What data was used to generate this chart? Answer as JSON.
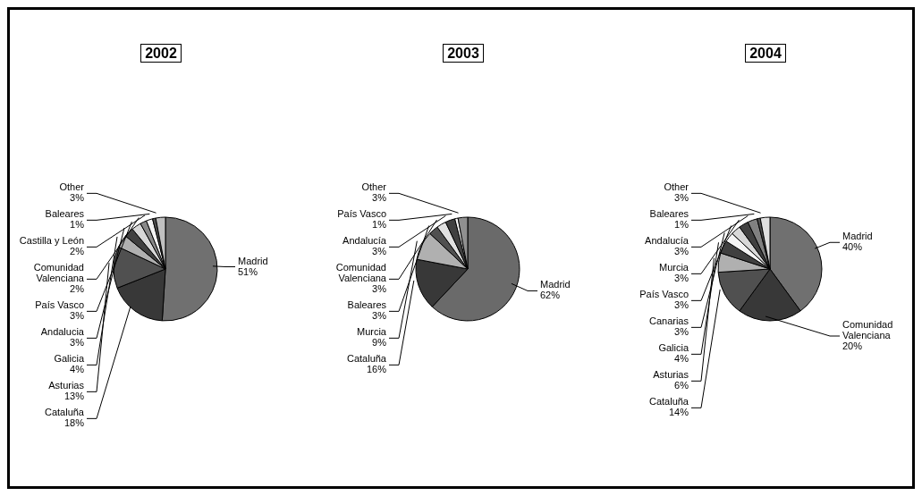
{
  "chart_data": [
    {
      "type": "pie",
      "title": "2002",
      "categories": [
        "Madrid",
        "Cataluña",
        "Asturias",
        "Galicia",
        "Andalucia",
        "País Vasco",
        "Comunidad Valenciana",
        "Castilla y León",
        "Baleares",
        "Other"
      ],
      "values": [
        51,
        18,
        13,
        4,
        3,
        3,
        2,
        2,
        1,
        3
      ],
      "value_labels": [
        "51%",
        "18%",
        "13%",
        "4%",
        "3%",
        "3%",
        "2%",
        "2%",
        "1%",
        "3%"
      ],
      "colors": [
        "#707070",
        "#383838",
        "#505050",
        "#b0b0b0",
        "#404040",
        "#d8d8d8",
        "#888888",
        "#f4f4f4",
        "#505050",
        "#c0c0c0"
      ]
    },
    {
      "type": "pie",
      "title": "2003",
      "categories": [
        "Madrid",
        "Cataluña",
        "Murcia",
        "Baleares",
        "Comunidad Valenciana",
        "Andalucía",
        "País Vasco",
        "Other"
      ],
      "values": [
        62,
        16,
        9,
        3,
        3,
        3,
        1,
        3
      ],
      "value_labels": [
        "62%",
        "16%",
        "9%",
        "3%",
        "3%",
        "3%",
        "1%",
        "3%"
      ],
      "colors": [
        "#6a6a6a",
        "#383838",
        "#b0b0b0",
        "#505050",
        "#e0e0e0",
        "#404040",
        "#f4f4f4",
        "#909090"
      ]
    },
    {
      "type": "pie",
      "title": "2004",
      "categories": [
        "Madrid",
        "Comunidad Valenciana",
        "Cataluña",
        "Asturias",
        "Galicia",
        "Canarias",
        "País Vasco",
        "Murcia",
        "Andalucía",
        "Baleares",
        "Other"
      ],
      "values": [
        40,
        20,
        14,
        6,
        4,
        3,
        3,
        3,
        3,
        1,
        3
      ],
      "value_labels": [
        "40%",
        "20%",
        "14%",
        "6%",
        "4%",
        "3%",
        "3%",
        "3%",
        "3%",
        "1%",
        "3%"
      ],
      "colors": [
        "#707070",
        "#383838",
        "#505050",
        "#b0b0b0",
        "#404040",
        "#f4f4f4",
        "#d8d8d8",
        "#404040",
        "#808080",
        "#505050",
        "#e0e0e0"
      ]
    }
  ]
}
